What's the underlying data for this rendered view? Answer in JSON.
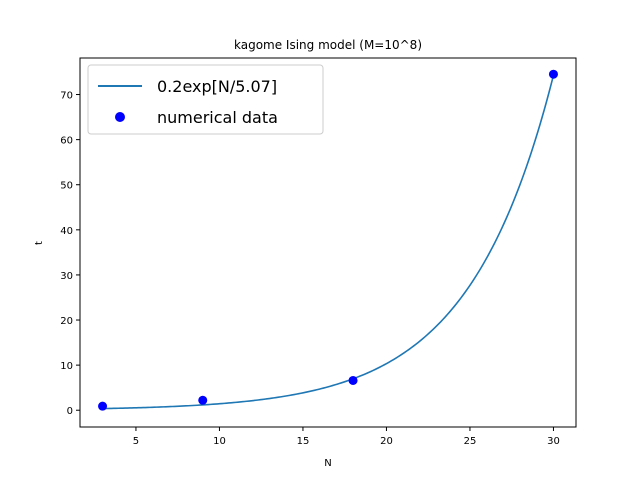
{
  "chart_data": {
    "type": "line",
    "title": "kagome Ising model (M=10^8)",
    "xlabel": "N",
    "ylabel": "t",
    "xlim": [
      1.65,
      31.35
    ],
    "ylim": [
      -3.72,
      78.1
    ],
    "xticks": [
      5,
      10,
      15,
      20,
      25,
      30
    ],
    "yticks": [
      0,
      10,
      20,
      30,
      40,
      50,
      60,
      70
    ],
    "grid": false,
    "legend_position": "top-left",
    "series": [
      {
        "name": "0.2exp[N/5.07]",
        "kind": "line",
        "color": "#1f77b4",
        "formula": {
          "a": 0.2,
          "b": 5.07
        },
        "x_range": [
          3,
          30
        ]
      },
      {
        "name": "numerical data",
        "kind": "scatter",
        "color": "#0000ff",
        "x": [
          3,
          9,
          18,
          30
        ],
        "y": [
          0.9,
          2.2,
          6.6,
          74.5
        ]
      }
    ]
  }
}
